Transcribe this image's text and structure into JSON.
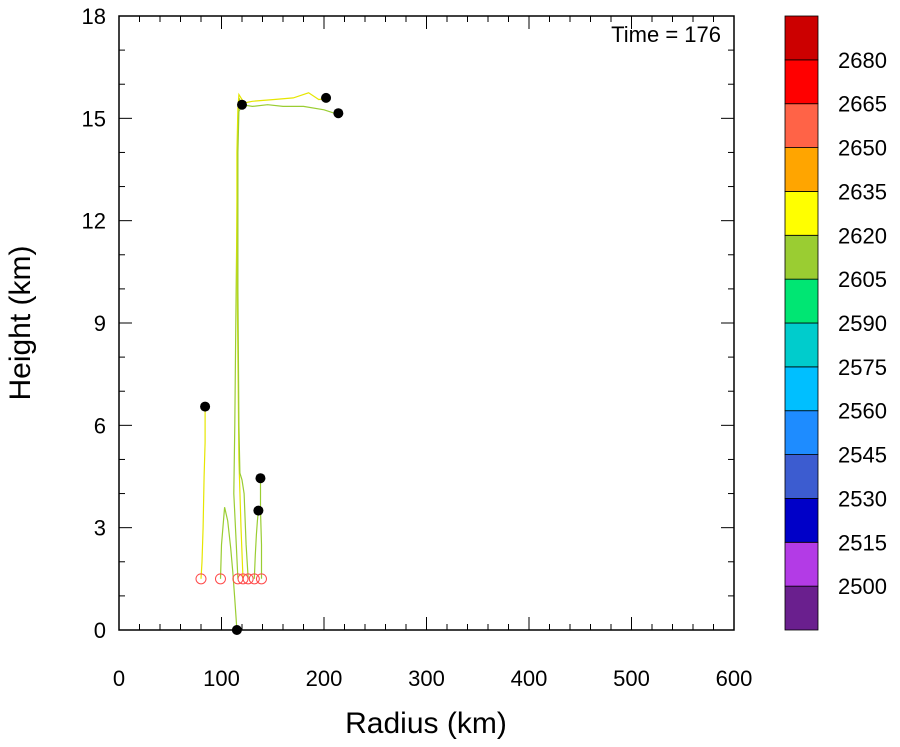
{
  "chart_data": {
    "type": "line",
    "annotation": "Time = 176",
    "xlabel": "Radius (km)",
    "ylabel": "Height (km)",
    "xlim": [
      0,
      600
    ],
    "ylim": [
      0,
      18
    ],
    "xticks": [
      "0",
      "100",
      "200",
      "300",
      "400",
      "500",
      "600"
    ],
    "yticks": [
      "0",
      "3",
      "6",
      "9",
      "12",
      "15",
      "18"
    ],
    "colorbar": {
      "labels": [
        "2500",
        "2515",
        "2530",
        "2545",
        "2560",
        "2575",
        "2590",
        "2605",
        "2620",
        "2635",
        "2650",
        "2665",
        "2680"
      ],
      "colors": [
        "#6a1f8e",
        "#b33be6",
        "#0000c8",
        "#3c5cd0",
        "#1e8cff",
        "#00bfff",
        "#00cccc",
        "#00e673",
        "#9acd32",
        "#ffff00",
        "#ffa500",
        "#ff6347",
        "#ff0000",
        "#cc0000"
      ]
    },
    "series": [
      {
        "color": "#ffff00",
        "start": [
          80,
          1.5
        ],
        "end": [
          84,
          6.55
        ],
        "points": [
          [
            80,
            1.5
          ],
          [
            81,
            2
          ],
          [
            82,
            3
          ],
          [
            83,
            4.5
          ],
          [
            84,
            5.5
          ],
          [
            84,
            6.55
          ]
        ]
      },
      {
        "color": "#9acd32",
        "start": [
          99,
          1.5
        ],
        "end": [
          115,
          0
        ],
        "points": [
          [
            99,
            1.5
          ],
          [
            100,
            2.5
          ],
          [
            103,
            3.6
          ],
          [
            106,
            3.2
          ],
          [
            109,
            2.4
          ],
          [
            111,
            1.7
          ],
          [
            113,
            0.9
          ],
          [
            115,
            0
          ]
        ]
      },
      {
        "color": "#9acd32",
        "start": [
          116,
          1.5
        ],
        "end": [
          214,
          15.15
        ],
        "points": [
          [
            116,
            1.5
          ],
          [
            114,
            2.8
          ],
          [
            112,
            4
          ],
          [
            113,
            6
          ],
          [
            114,
            9
          ],
          [
            115,
            12
          ],
          [
            116,
            15
          ],
          [
            117,
            15.6
          ],
          [
            120,
            15.4
          ],
          [
            130,
            15.35
          ],
          [
            145,
            15.4
          ],
          [
            160,
            15.35
          ],
          [
            180,
            15.35
          ],
          [
            200,
            15.25
          ],
          [
            210,
            15.15
          ],
          [
            214,
            15.15
          ]
        ]
      },
      {
        "color": "#ffff00",
        "start": [
          121,
          1.5
        ],
        "end": [
          202,
          15.6
        ],
        "points": [
          [
            121,
            1.5
          ],
          [
            119,
            3
          ],
          [
            117,
            5
          ],
          [
            116,
            8
          ],
          [
            115,
            11
          ],
          [
            115,
            14
          ],
          [
            116,
            15.3
          ],
          [
            117,
            15.7
          ],
          [
            122,
            15.45
          ],
          [
            130,
            15.5
          ],
          [
            150,
            15.55
          ],
          [
            170,
            15.6
          ],
          [
            185,
            15.75
          ],
          [
            195,
            15.55
          ],
          [
            202,
            15.6
          ]
        ]
      },
      {
        "color": "#9acd32",
        "start": [
          126,
          1.5
        ],
        "end": [
          120,
          15.4
        ],
        "points": [
          [
            126,
            1.5
          ],
          [
            124,
            2.5
          ],
          [
            122,
            4
          ],
          [
            120,
            4.4
          ],
          [
            118,
            4.6
          ],
          [
            117,
            6
          ],
          [
            116,
            10
          ],
          [
            116,
            14
          ],
          [
            117,
            15.2
          ],
          [
            120,
            15.4
          ]
        ]
      },
      {
        "color": "#9acd32",
        "start": [
          132,
          1.5
        ],
        "end": [
          136,
          3.5
        ],
        "points": [
          [
            132,
            1.5
          ],
          [
            133,
            2.2
          ],
          [
            134,
            2.8
          ],
          [
            135,
            3.2
          ],
          [
            136,
            3.5
          ]
        ]
      },
      {
        "color": "#9acd32",
        "start": [
          139,
          1.5
        ],
        "end": [
          138,
          4.45
        ],
        "points": [
          [
            139,
            1.5
          ],
          [
            139,
            2.5
          ],
          [
            138,
            3.5
          ],
          [
            138,
            4.45
          ]
        ]
      }
    ]
  }
}
